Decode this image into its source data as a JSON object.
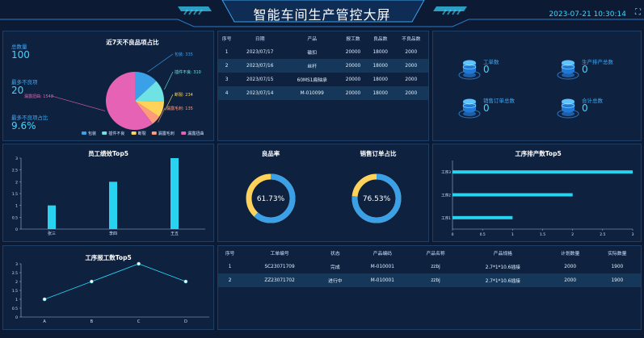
{
  "header": {
    "title": "智能车间生产管控大屏",
    "datetime": "2023-07-21 10:30:14",
    "fullscreen_icon": "fullscreen-icon"
  },
  "stats": {
    "total_label": "总数量",
    "total_value": "100",
    "most_defect_label": "最多不良项",
    "most_defect_value": "20",
    "most_defect_ratio_label": "最多不良项占比",
    "most_defect_ratio_value": "9.6%"
  },
  "pie": {
    "title": "近7天不良品项占比",
    "chart_data": {
      "type": "pie",
      "slices": [
        {
          "name": "包装",
          "value": 335,
          "label": "包装: 335",
          "color": "#3aa0e8"
        },
        {
          "name": "插件不良",
          "value": 310,
          "label": "插件不良: 310",
          "color": "#6fe3e3"
        },
        {
          "name": "断裂",
          "value": 234,
          "label": "断裂: 234",
          "color": "#ffd25a"
        },
        {
          "name": "漏露毛刺",
          "value": 135,
          "label": "漏露毛刺: 135",
          "color": "#ff9a7a"
        },
        {
          "name": "漏露扭曲",
          "value": 1548,
          "label": "漏露扭曲: 1548",
          "color": "#e662b4"
        }
      ]
    }
  },
  "top_table": {
    "headers": [
      "序号",
      "日期",
      "产品",
      "报工数",
      "良品数",
      "不良品数"
    ],
    "rows": [
      [
        "1",
        "2023/07/17",
        "磁扣",
        "20000",
        "18000",
        "2000"
      ],
      [
        "2",
        "2023/07/16",
        "丝杆",
        "20000",
        "18000",
        "2000"
      ],
      [
        "3",
        "2023/07/15",
        "60MS1扁轴承",
        "20000",
        "18000",
        "2000"
      ],
      [
        "4",
        "2023/07/14",
        "M-010099",
        "20000",
        "18000",
        "2000"
      ]
    ]
  },
  "cards": [
    {
      "label": "工单数",
      "value": "0",
      "icon": "database-icon"
    },
    {
      "label": "生产排产总数",
      "value": "0",
      "icon": "database-icon"
    },
    {
      "label": "销售订单总数",
      "value": "0",
      "icon": "database-icon"
    },
    {
      "label": "合计总数",
      "value": "0",
      "icon": "database-icon"
    }
  ],
  "employee_chart": {
    "title": "员工绩效Top5",
    "chart_data": {
      "type": "bar",
      "categories": [
        "张三",
        "李四",
        "王五"
      ],
      "values": [
        1,
        2,
        3
      ],
      "ylim": [
        0,
        3
      ],
      "yticks": [
        "0",
        "0.5",
        "1",
        "1.5",
        "2",
        "2.5",
        "3"
      ],
      "color": "#27d3ee"
    }
  },
  "good_rate": {
    "title": "良品率",
    "chart_data": {
      "type": "pie",
      "value": 61.73,
      "label": "61.73%"
    }
  },
  "sales_rate": {
    "title": "销售订单占比",
    "chart_data": {
      "type": "pie",
      "value": 76.53,
      "label": "76.53%"
    }
  },
  "process_chart": {
    "title": "工序排产数Top5",
    "chart_data": {
      "type": "bar",
      "orientation": "horizontal",
      "categories": [
        "工序1",
        "工序2",
        "工序3"
      ],
      "values": [
        1,
        2,
        3
      ],
      "xlim": [
        0,
        3
      ],
      "xticks": [
        "0",
        "0.5",
        "1",
        "1.5",
        "2",
        "2.5",
        "3"
      ],
      "color": "#27d3ee"
    }
  },
  "line_chart": {
    "title": "工序报工数Top5",
    "chart_data": {
      "type": "line",
      "categories": [
        "A",
        "B",
        "C",
        "D"
      ],
      "values": [
        1,
        2,
        3,
        2
      ],
      "ylim": [
        0,
        3
      ],
      "yticks": [
        "0",
        "0.5",
        "1",
        "1.5",
        "2",
        "2.5",
        "3"
      ],
      "color": "#27d3ee"
    }
  },
  "bottom_table": {
    "headers": [
      "序号",
      "工单编号",
      "状态",
      "产品编码",
      "产品名称",
      "产品规格",
      "计划数量",
      "实际数量"
    ],
    "rows": [
      [
        "1",
        "SC23071709",
        "完成",
        "M-010001",
        "zzbj",
        "2.7*1*10.6插接",
        "2000",
        "1900"
      ],
      [
        "2",
        "ZZ23071702",
        "进行中",
        "M-010001",
        "zzbj",
        "2.7*1*10.6插接",
        "2000",
        "1900"
      ]
    ]
  },
  "colors": {
    "accent": "#39d8ff",
    "bar": "#27d3ee",
    "ring_blue": "#3aa0e8",
    "ring_yellow": "#ffd25a"
  }
}
